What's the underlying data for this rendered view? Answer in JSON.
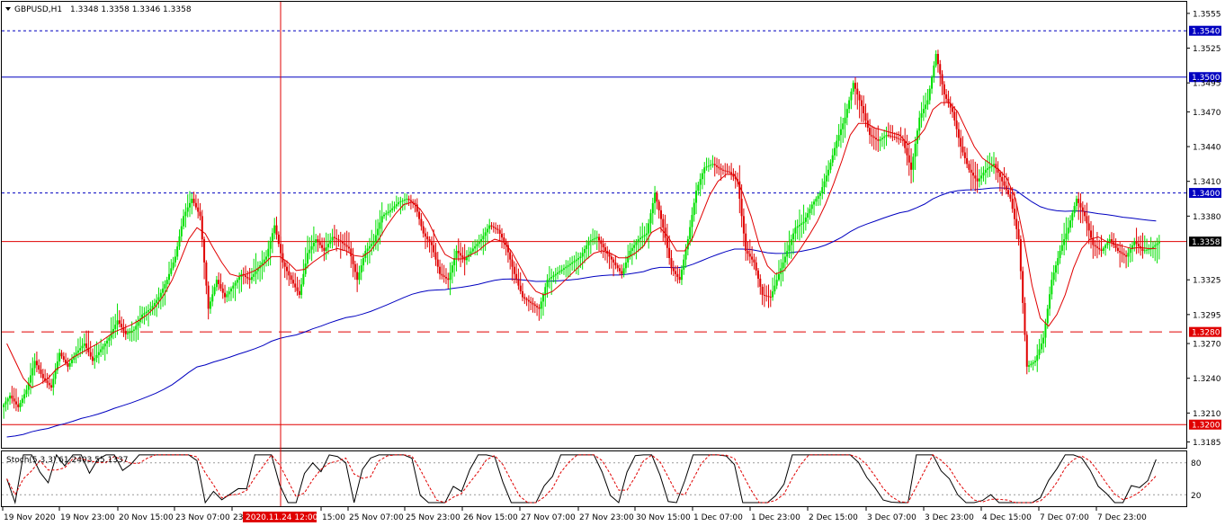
{
  "header": {
    "symbol": "GBPUSD,H1",
    "ohlc": "1.3348 1.3358 1.3346 1.3358"
  },
  "indicator": {
    "label": "Stoch(5,3,3) 61.2403 55.1337",
    "levels": [
      "80",
      "20"
    ]
  },
  "crosshair": {
    "time_label": "2020.11.24 12:00"
  },
  "colors": {
    "bull": "#00e000",
    "bear": "#e00000",
    "ma_fast": "#e00000",
    "ma_slow": "#0000c0",
    "blue_line": "#0000c0",
    "red_line": "#e00000",
    "tag_blue": "#0000c0",
    "tag_red": "#e00000",
    "tag_black": "#000000"
  },
  "chart_data": {
    "type": "candlestick",
    "symbol": "GBPUSD",
    "timeframe": "H1",
    "ylim": [
      1.318,
      1.3565
    ],
    "y_ticks": [
      "1.3555",
      "1.3525",
      "1.3495",
      "1.3470",
      "1.3440",
      "1.3410",
      "1.3380",
      "1.3325",
      "1.3295",
      "1.3270",
      "1.3240",
      "1.3210",
      "1.3185"
    ],
    "x_labels": [
      "19 Nov 2020",
      "19 Nov 23:00",
      "20 Nov 15:00",
      "23 Nov 07:00",
      "23",
      "15:00",
      "25 Nov 07:00",
      "25 Nov 23:00",
      "26 Nov 15:00",
      "27 Nov 07:00",
      "27 Nov 23:00",
      "30 Nov 15:00",
      "1 Dec 07:00",
      "1 Dec 23:00",
      "2 Dec 15:00",
      "3 Dec 07:00",
      "3 Dec 23:00",
      "4 Dec 15:00",
      "7 Dec 07:00",
      "7 Dec 23:00"
    ],
    "price_levels": [
      {
        "price": 1.354,
        "label": "1.3540",
        "style": "dotted",
        "color": "blue"
      },
      {
        "price": 1.35,
        "label": "1.3500",
        "style": "solid",
        "color": "blue"
      },
      {
        "price": 1.34,
        "label": "1.3400",
        "style": "dotted",
        "color": "blue"
      },
      {
        "price": 1.3358,
        "label": "1.3358",
        "style": "solid",
        "color": "red",
        "current": true
      },
      {
        "price": 1.328,
        "label": "1.3280",
        "style": "dashed",
        "color": "red"
      },
      {
        "price": 1.32,
        "label": "1.3200",
        "style": "solid",
        "color": "red"
      }
    ],
    "closes": [
      1.3225,
      1.3215,
      1.323,
      1.3255,
      1.324,
      1.3232,
      1.3262,
      1.325,
      1.3262,
      1.327,
      1.3255,
      1.3265,
      1.3275,
      1.329,
      1.3278,
      1.3282,
      1.3295,
      1.33,
      1.331,
      1.3325,
      1.3345,
      1.338,
      1.3395,
      1.338,
      1.33,
      1.3325,
      1.331,
      1.332,
      1.333,
      1.3325,
      1.3335,
      1.3345,
      1.3372,
      1.334,
      1.3325,
      1.3312,
      1.3348,
      1.336,
      1.335,
      1.3362,
      1.3358,
      1.3352,
      1.3325,
      1.335,
      1.3358,
      1.338,
      1.3385,
      1.3392,
      1.3395,
      1.339,
      1.3365,
      1.3355,
      1.333,
      1.3325,
      1.335,
      1.3342,
      1.3352,
      1.336,
      1.3372,
      1.3368,
      1.3355,
      1.333,
      1.331,
      1.3305,
      1.33,
      1.3325,
      1.333,
      1.3335,
      1.334,
      1.3345,
      1.3358,
      1.3362,
      1.335,
      1.334,
      1.333,
      1.335,
      1.336,
      1.3365,
      1.34,
      1.337,
      1.3335,
      1.3325,
      1.336,
      1.3402,
      1.3422,
      1.3425,
      1.342,
      1.3418,
      1.341,
      1.335,
      1.334,
      1.3312,
      1.331,
      1.333,
      1.335,
      1.337,
      1.3375,
      1.339,
      1.34,
      1.342,
      1.3445,
      1.3465,
      1.3495,
      1.3475,
      1.345,
      1.3445,
      1.345,
      1.3448,
      1.3445,
      1.342,
      1.3465,
      1.348,
      1.352,
      1.3485,
      1.347,
      1.344,
      1.342,
      1.341,
      1.342,
      1.3425,
      1.341,
      1.3395,
      1.336,
      1.325,
      1.3255,
      1.3275,
      1.3325,
      1.335,
      1.337,
      1.3395,
      1.338,
      1.3355,
      1.335,
      1.336,
      1.335,
      1.3345,
      1.3358,
      1.335,
      1.3352,
      1.3358
    ],
    "ma_fast": [
      1.327,
      1.3255,
      1.324,
      1.3232,
      1.3235,
      1.324,
      1.3248,
      1.3252,
      1.3258,
      1.3262,
      1.3266,
      1.327,
      1.3275,
      1.328,
      1.3283,
      1.3286,
      1.329,
      1.3295,
      1.3302,
      1.3312,
      1.3325,
      1.3342,
      1.336,
      1.337,
      1.3365,
      1.3352,
      1.334,
      1.333,
      1.3328,
      1.333,
      1.3333,
      1.3338,
      1.3345,
      1.3345,
      1.334,
      1.3333,
      1.3334,
      1.334,
      1.3345,
      1.335,
      1.3352,
      1.335,
      1.3346,
      1.3345,
      1.335,
      1.336,
      1.3372,
      1.3382,
      1.339,
      1.3392,
      1.3386,
      1.3375,
      1.336,
      1.3347,
      1.3343,
      1.3343,
      1.3346,
      1.335,
      1.3356,
      1.336,
      1.3358,
      1.335,
      1.3337,
      1.3324,
      1.3315,
      1.3312,
      1.3315,
      1.3321,
      1.3328,
      1.3335,
      1.3342,
      1.3348,
      1.335,
      1.3348,
      1.3344,
      1.3344,
      1.3348,
      1.3354,
      1.3366,
      1.337,
      1.3362,
      1.335,
      1.335,
      1.3362,
      1.338,
      1.3398,
      1.341,
      1.3416,
      1.3416,
      1.34,
      1.338,
      1.3355,
      1.3337,
      1.333,
      1.3333,
      1.3342,
      1.3352,
      1.3363,
      1.3375,
      1.339,
      1.3408,
      1.3428,
      1.345,
      1.346,
      1.346,
      1.3456,
      1.3454,
      1.3452,
      1.345,
      1.3442,
      1.3446,
      1.3455,
      1.3472,
      1.3478,
      1.3478,
      1.347,
      1.3455,
      1.344,
      1.343,
      1.3425,
      1.342,
      1.3412,
      1.3395,
      1.336,
      1.332,
      1.3292,
      1.3285,
      1.3295,
      1.3312,
      1.3335,
      1.3352,
      1.336,
      1.3362,
      1.3358,
      1.3356,
      1.3354,
      1.3352,
      1.3353,
      1.3352,
      1.3352
    ]
  }
}
